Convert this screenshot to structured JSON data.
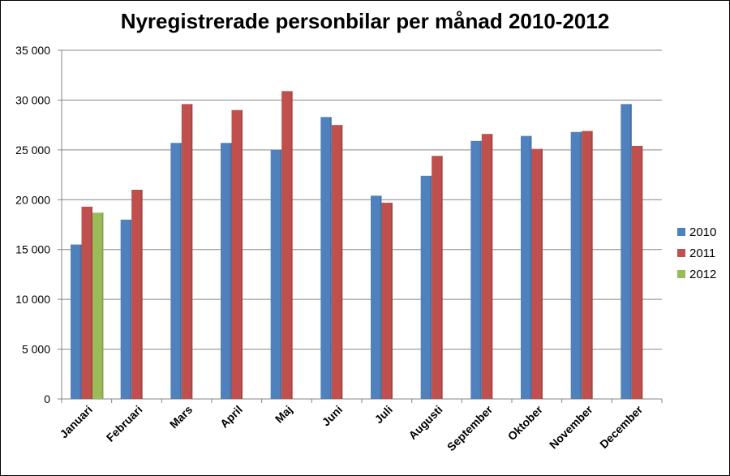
{
  "chart_data": {
    "type": "bar",
    "title": "Nyregistrerade personbilar per månad 2010-2012",
    "xlabel": "",
    "ylabel": "",
    "ylim": [
      0,
      35000
    ],
    "yticks": [
      0,
      5000,
      10000,
      15000,
      20000,
      25000,
      30000,
      35000
    ],
    "ytick_labels": [
      "0",
      "5 000",
      "10 000",
      "15 000",
      "20 000",
      "25 000",
      "30 000",
      "35 000"
    ],
    "grid": true,
    "legend_position": "right",
    "categories": [
      "Januari",
      "Februari",
      "Mars",
      "April",
      "Maj",
      "Juni",
      "Juli",
      "Augusti",
      "September",
      "Oktober",
      "November",
      "December"
    ],
    "series": [
      {
        "name": "2010",
        "color": "#4F81BD",
        "values": [
          15500,
          18000,
          25700,
          25700,
          25000,
          28300,
          20400,
          22400,
          25900,
          26400,
          26800,
          29600
        ]
      },
      {
        "name": "2011",
        "color": "#C0504D",
        "values": [
          19300,
          21000,
          29600,
          29000,
          30900,
          27500,
          19700,
          24400,
          26600,
          25100,
          26900,
          25400
        ]
      },
      {
        "name": "2012",
        "color": "#9BBB59",
        "values": [
          18700,
          null,
          null,
          null,
          null,
          null,
          null,
          null,
          null,
          null,
          null,
          null
        ]
      }
    ]
  }
}
